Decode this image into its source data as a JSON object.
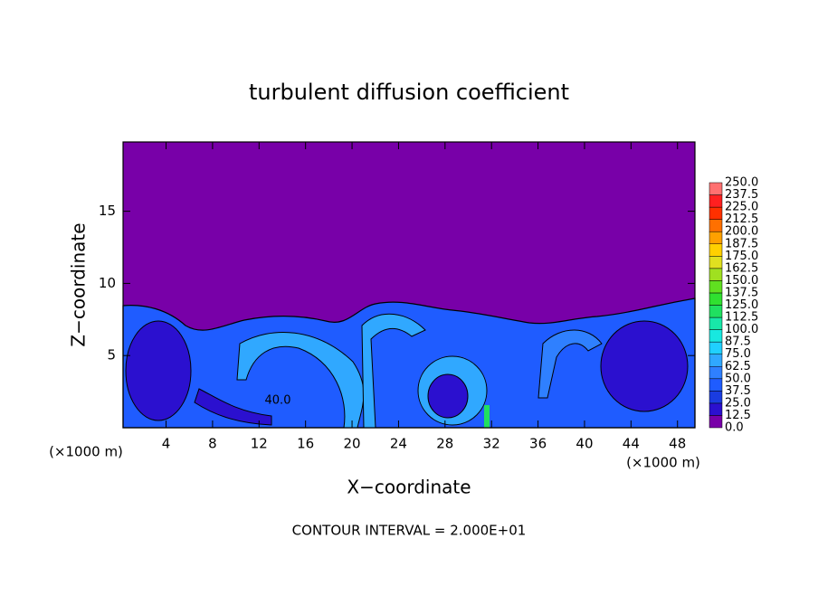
{
  "chart_data": {
    "type": "contour",
    "title": "turbulent diffusion coefficient",
    "xlabel": "X−coordinate",
    "ylabel": "Z−coordinate",
    "x_unit_label": "(×1000 m)",
    "z_unit_label": "(×1000 m)",
    "footnote": "CONTOUR INTERVAL = 2.000E+01",
    "annotation": "40.0",
    "xlim": [
      0.3,
      49.5
    ],
    "ylim": [
      0,
      19.8
    ],
    "xticks": [
      4,
      8,
      12,
      16,
      20,
      24,
      28,
      32,
      36,
      40,
      44,
      48
    ],
    "yticks": [
      5,
      10,
      15
    ],
    "colorbar": {
      "levels": [
        {
          "value": 0,
          "label": "0.0"
        },
        12.5,
        {
          "value": 25,
          "label": "25.0"
        },
        37.5,
        {
          "value": 50,
          "label": "50.0"
        },
        62.5,
        {
          "value": 75,
          "label": "75.0"
        },
        87.5,
        {
          "value": 100,
          "label": "100.0"
        },
        112.5,
        {
          "value": 125,
          "label": "125.0"
        },
        137.5,
        {
          "value": 150,
          "label": "150.0"
        },
        162.5,
        {
          "value": 175,
          "label": "175.0"
        },
        187.5,
        {
          "value": 200,
          "label": "200.0"
        },
        212.5,
        {
          "value": 225,
          "label": "225.0"
        },
        237.5,
        {
          "value": 250,
          "label": "250.0"
        }
      ],
      "colors": [
        "#7800a8",
        "#2b10cf",
        "#1a3ce0",
        "#1f5cff",
        "#2f80ff",
        "#30a8ff",
        "#20d0ff",
        "#18e8e0",
        "#18e8a8",
        "#20e060",
        "#30e030",
        "#60e020",
        "#a0e020",
        "#e0e020",
        "#ffd000",
        "#ffa000",
        "#ff7000",
        "#ff3000",
        "#ff2020",
        "#ff7070"
      ]
    }
  }
}
